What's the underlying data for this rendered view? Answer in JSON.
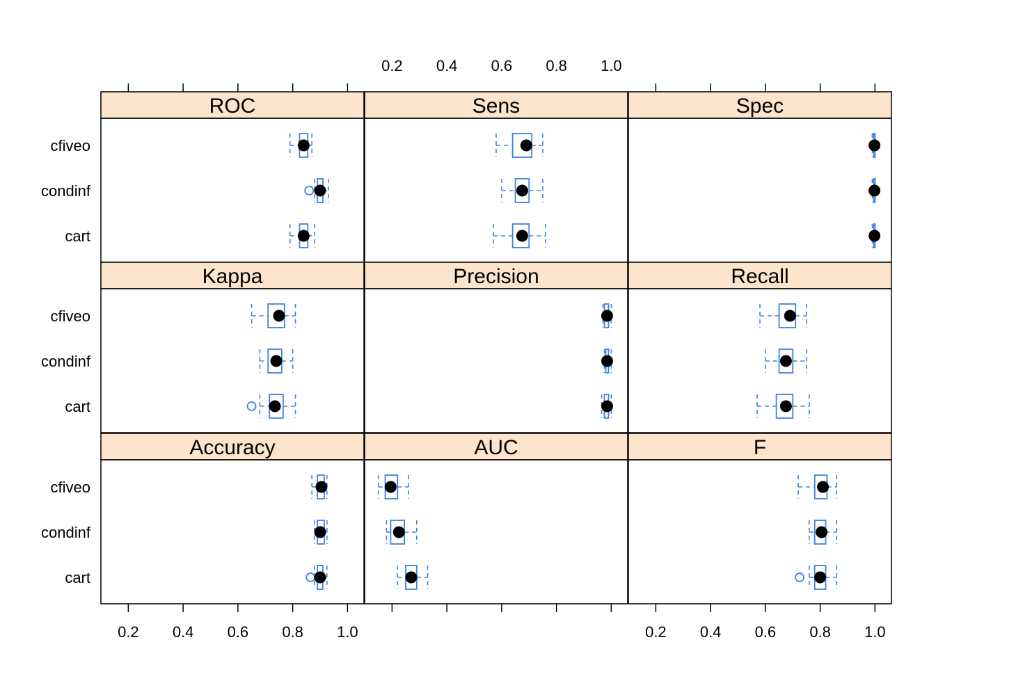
{
  "chart_data": {
    "type": "box",
    "layout": "3x3 lattice",
    "categories": [
      "cfiveo",
      "condinf",
      "cart"
    ],
    "xlim": [
      0.1,
      1.06
    ],
    "ticks": [
      0.2,
      0.4,
      0.6,
      0.8,
      1.0
    ],
    "tick_labels": [
      "0.2",
      "0.4",
      "0.6",
      "0.8",
      "1.0"
    ],
    "colors": {
      "box": "#3b82e6",
      "strip": "#fde4cc",
      "median_dot": "#000000"
    },
    "panels": [
      {
        "title": "ROC",
        "boxes": [
          {
            "category": "cfiveo",
            "whisker_low": 0.79,
            "q1": 0.825,
            "median": 0.84,
            "q3": 0.855,
            "whisker_high": 0.87,
            "outliers": []
          },
          {
            "category": "condinf",
            "whisker_low": 0.88,
            "q1": 0.89,
            "median": 0.9,
            "q3": 0.91,
            "whisker_high": 0.93,
            "outliers": [
              0.86
            ]
          },
          {
            "category": "cart",
            "whisker_low": 0.79,
            "q1": 0.825,
            "median": 0.84,
            "q3": 0.855,
            "whisker_high": 0.88,
            "outliers": []
          }
        ]
      },
      {
        "title": "Sens",
        "boxes": [
          {
            "category": "cfiveo",
            "whisker_low": 0.58,
            "q1": 0.64,
            "median": 0.69,
            "q3": 0.71,
            "whisker_high": 0.75,
            "outliers": []
          },
          {
            "category": "condinf",
            "whisker_low": 0.6,
            "q1": 0.65,
            "median": 0.675,
            "q3": 0.7,
            "whisker_high": 0.75,
            "outliers": []
          },
          {
            "category": "cart",
            "whisker_low": 0.57,
            "q1": 0.64,
            "median": 0.675,
            "q3": 0.7,
            "whisker_high": 0.76,
            "outliers": []
          }
        ]
      },
      {
        "title": "Spec",
        "boxes": [
          {
            "category": "cfiveo",
            "whisker_low": 0.99,
            "q1": 0.995,
            "median": 0.998,
            "q3": 1.0,
            "whisker_high": 1.0,
            "outliers": []
          },
          {
            "category": "condinf",
            "whisker_low": 0.99,
            "q1": 0.995,
            "median": 0.998,
            "q3": 1.0,
            "whisker_high": 1.0,
            "outliers": []
          },
          {
            "category": "cart",
            "whisker_low": 0.99,
            "q1": 0.995,
            "median": 0.998,
            "q3": 1.0,
            "whisker_high": 1.0,
            "outliers": []
          }
        ]
      },
      {
        "title": "Kappa",
        "boxes": [
          {
            "category": "cfiveo",
            "whisker_low": 0.65,
            "q1": 0.71,
            "median": 0.75,
            "q3": 0.77,
            "whisker_high": 0.81,
            "outliers": []
          },
          {
            "category": "condinf",
            "whisker_low": 0.68,
            "q1": 0.71,
            "median": 0.74,
            "q3": 0.76,
            "whisker_high": 0.8,
            "outliers": []
          },
          {
            "category": "cart",
            "whisker_low": 0.68,
            "q1": 0.715,
            "median": 0.735,
            "q3": 0.765,
            "whisker_high": 0.81,
            "outliers": [
              0.65
            ]
          }
        ]
      },
      {
        "title": "Precision",
        "boxes": [
          {
            "category": "cfiveo",
            "whisker_low": 0.97,
            "q1": 0.975,
            "median": 0.985,
            "q3": 0.99,
            "whisker_high": 1.0,
            "outliers": []
          },
          {
            "category": "condinf",
            "whisker_low": 0.975,
            "q1": 0.98,
            "median": 0.985,
            "q3": 0.99,
            "whisker_high": 1.0,
            "outliers": []
          },
          {
            "category": "cart",
            "whisker_low": 0.965,
            "q1": 0.975,
            "median": 0.985,
            "q3": 0.99,
            "whisker_high": 1.0,
            "outliers": []
          }
        ]
      },
      {
        "title": "Recall",
        "boxes": [
          {
            "category": "cfiveo",
            "whisker_low": 0.58,
            "q1": 0.65,
            "median": 0.69,
            "q3": 0.71,
            "whisker_high": 0.75,
            "outliers": []
          },
          {
            "category": "condinf",
            "whisker_low": 0.6,
            "q1": 0.65,
            "median": 0.675,
            "q3": 0.7,
            "whisker_high": 0.75,
            "outliers": []
          },
          {
            "category": "cart",
            "whisker_low": 0.57,
            "q1": 0.64,
            "median": 0.675,
            "q3": 0.7,
            "whisker_high": 0.76,
            "outliers": []
          }
        ]
      },
      {
        "title": "Accuracy",
        "boxes": [
          {
            "category": "cfiveo",
            "whisker_low": 0.87,
            "q1": 0.89,
            "median": 0.905,
            "q3": 0.915,
            "whisker_high": 0.925,
            "outliers": []
          },
          {
            "category": "condinf",
            "whisker_low": 0.88,
            "q1": 0.89,
            "median": 0.9,
            "q3": 0.915,
            "whisker_high": 0.925,
            "outliers": []
          },
          {
            "category": "cart",
            "whisker_low": 0.88,
            "q1": 0.89,
            "median": 0.9,
            "q3": 0.91,
            "whisker_high": 0.925,
            "outliers": [
              0.865
            ]
          }
        ]
      },
      {
        "title": "AUC",
        "boxes": [
          {
            "category": "cfiveo",
            "whisker_low": 0.15,
            "q1": 0.175,
            "median": 0.195,
            "q3": 0.22,
            "whisker_high": 0.26,
            "outliers": []
          },
          {
            "category": "condinf",
            "whisker_low": 0.18,
            "q1": 0.195,
            "median": 0.225,
            "q3": 0.245,
            "whisker_high": 0.29,
            "outliers": []
          },
          {
            "category": "cart",
            "whisker_low": 0.22,
            "q1": 0.25,
            "median": 0.27,
            "q3": 0.29,
            "whisker_high": 0.33,
            "outliers": []
          }
        ]
      },
      {
        "title": "F",
        "boxes": [
          {
            "category": "cfiveo",
            "whisker_low": 0.72,
            "q1": 0.78,
            "median": 0.81,
            "q3": 0.825,
            "whisker_high": 0.86,
            "outliers": []
          },
          {
            "category": "condinf",
            "whisker_low": 0.76,
            "q1": 0.78,
            "median": 0.805,
            "q3": 0.82,
            "whisker_high": 0.86,
            "outliers": []
          },
          {
            "category": "cart",
            "whisker_low": 0.76,
            "q1": 0.78,
            "median": 0.8,
            "q3": 0.82,
            "whisker_high": 0.86,
            "outliers": [
              0.725
            ]
          }
        ]
      }
    ]
  }
}
